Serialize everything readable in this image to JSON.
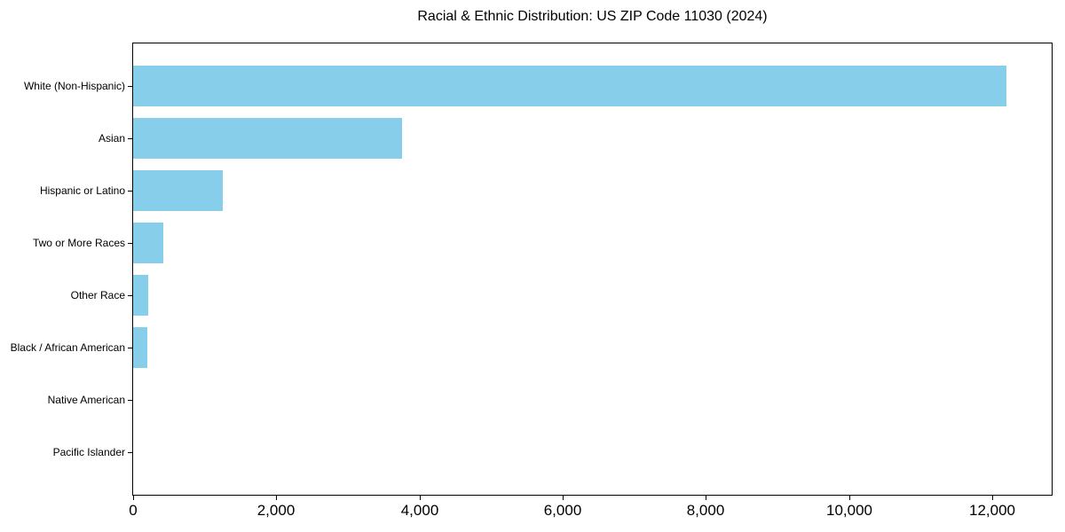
{
  "chart_data": {
    "type": "bar",
    "orientation": "horizontal",
    "title": "Racial & Ethnic Distribution: US ZIP Code 11030 (2024)",
    "categories": [
      "White (Non-Hispanic)",
      "Asian",
      "Hispanic or Latino",
      "Two or More Races",
      "Other Race",
      "Black / African American",
      "Native American",
      "Pacific Islander"
    ],
    "values": [
      12200,
      3760,
      1250,
      425,
      205,
      200,
      0,
      0
    ],
    "xlabel": "",
    "ylabel": "",
    "xlim": [
      0,
      12830
    ],
    "x_ticks": [
      0,
      2000,
      4000,
      6000,
      8000,
      10000,
      12000
    ],
    "x_tick_labels": [
      "0",
      "2,000",
      "4,000",
      "6,000",
      "8,000",
      "10,000",
      "12,000"
    ],
    "bar_color": "#87CEEB",
    "axis_color": "#000000",
    "text_color": "#000000",
    "grid": false,
    "legend": "none"
  }
}
